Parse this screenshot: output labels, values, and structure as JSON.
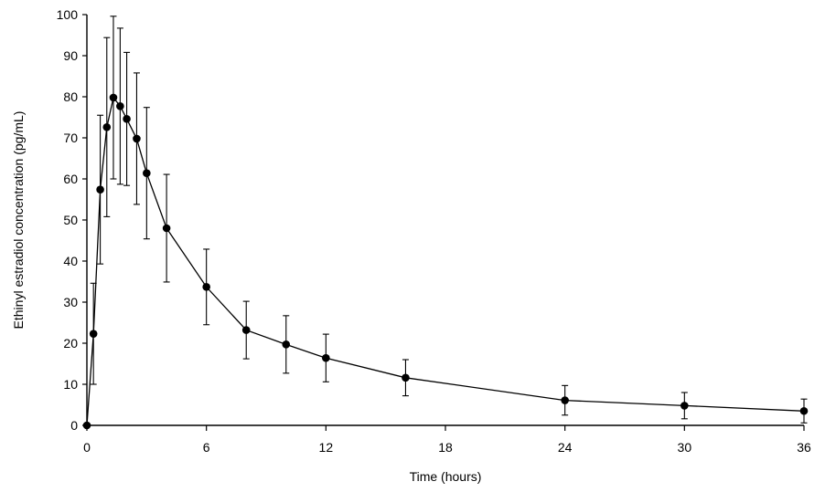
{
  "chart_data": {
    "type": "line",
    "title": "",
    "xlabel": "Time (hours)",
    "ylabel": "Ethinyl estradiol concentration (pg/mL)",
    "xlim": [
      0,
      36
    ],
    "ylim": [
      0,
      100
    ],
    "xticks": [
      0,
      6,
      12,
      18,
      24,
      30,
      36
    ],
    "yticks": [
      0,
      10,
      20,
      30,
      40,
      50,
      60,
      70,
      80,
      90,
      100
    ],
    "grid": false,
    "legend": "none",
    "series": [
      {
        "x": [
          0,
          0.33,
          0.67,
          1,
          1.33,
          1.67,
          2,
          2.5,
          3,
          4,
          6,
          8,
          10,
          12,
          16,
          24,
          30,
          36
        ],
        "y": [
          0,
          22.3,
          57.4,
          72.6,
          79.8,
          77.7,
          74.6,
          69.8,
          61.4,
          48.0,
          33.7,
          23.2,
          19.7,
          16.4,
          11.6,
          6.1,
          4.8,
          3.5
        ],
        "error": [
          0,
          12.3,
          18.1,
          21.8,
          19.8,
          19.0,
          16.2,
          16.0,
          16.0,
          13.1,
          9.2,
          7.0,
          7.0,
          5.8,
          4.4,
          3.6,
          3.2,
          2.9
        ]
      }
    ]
  }
}
